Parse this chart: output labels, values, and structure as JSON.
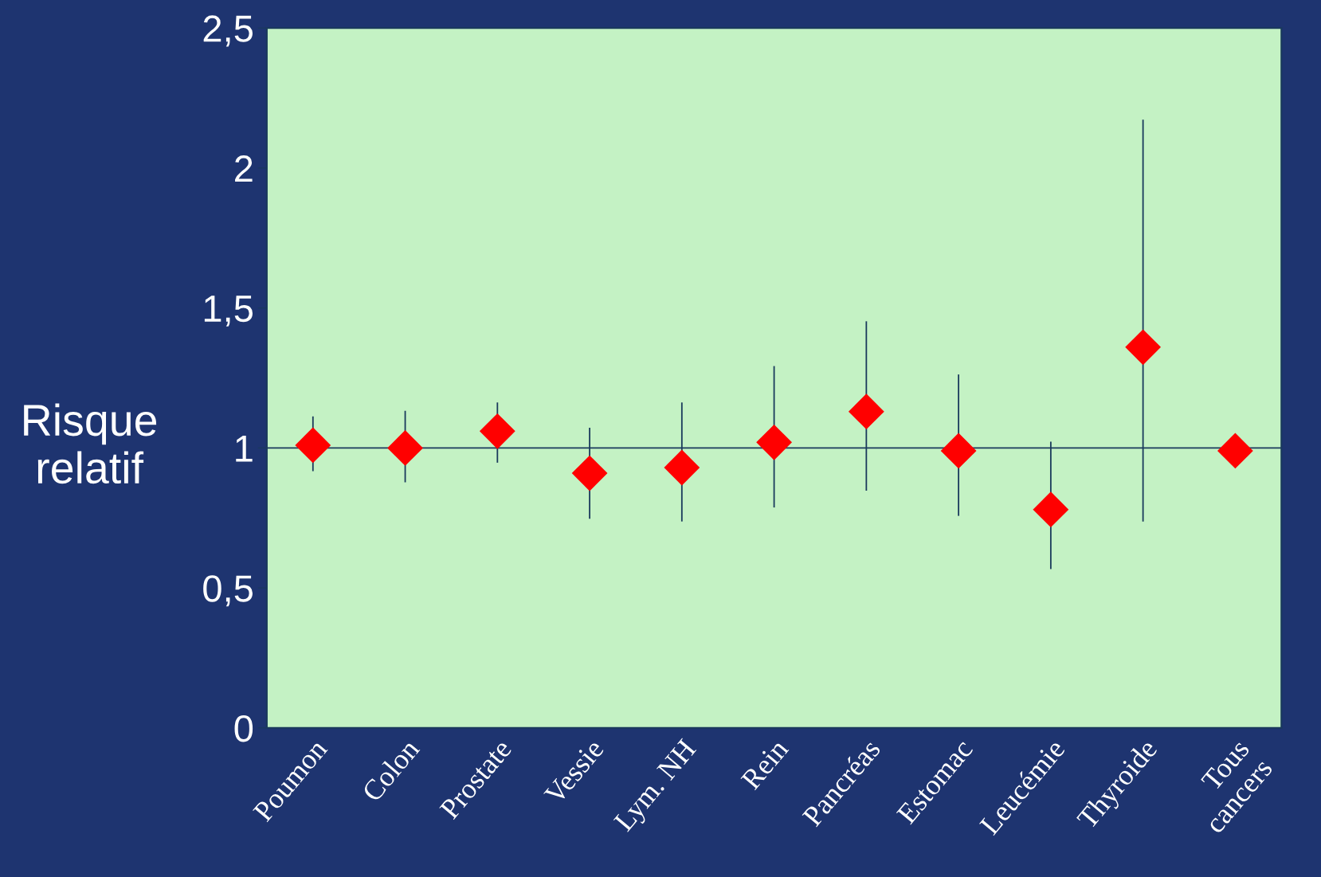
{
  "chart_data": {
    "type": "scatter",
    "ylabel": "Risque\nrelatif",
    "categories": [
      "Poumon",
      "Colon",
      "Prostate",
      "Vessie",
      "Lym. NH",
      "Rein",
      "Pancréas",
      "Estomac",
      "Leucémie",
      "Thyroide",
      "Tous\ncancers"
    ],
    "series": [
      {
        "color": "#ff0000",
        "values": [
          1.01,
          1.0,
          1.06,
          0.91,
          0.93,
          1.02,
          1.13,
          0.99,
          0.78,
          1.36,
          0.99
        ],
        "errors": [
          [
            0.92,
            1.11
          ],
          [
            0.88,
            1.13
          ],
          [
            0.95,
            1.16
          ],
          [
            0.75,
            1.07
          ],
          [
            0.74,
            1.16
          ],
          [
            0.79,
            1.29
          ],
          [
            0.85,
            1.45
          ],
          [
            0.76,
            1.26
          ],
          [
            0.57,
            1.02
          ],
          [
            0.74,
            2.17
          ],
          null
        ]
      }
    ],
    "marker": "diamond",
    "ylim": [
      0,
      2.5
    ],
    "yticks": [
      0,
      {
        "value": 0.5,
        "label": "0,5"
      },
      1,
      {
        "value": 1.5,
        "label": "1,5"
      },
      2,
      {
        "value": 2.5,
        "label": "2,5"
      }
    ],
    "ref_lines": [
      {
        "axis": "y",
        "value": 1,
        "color": "#1a3a5c"
      }
    ],
    "grid": false
  }
}
